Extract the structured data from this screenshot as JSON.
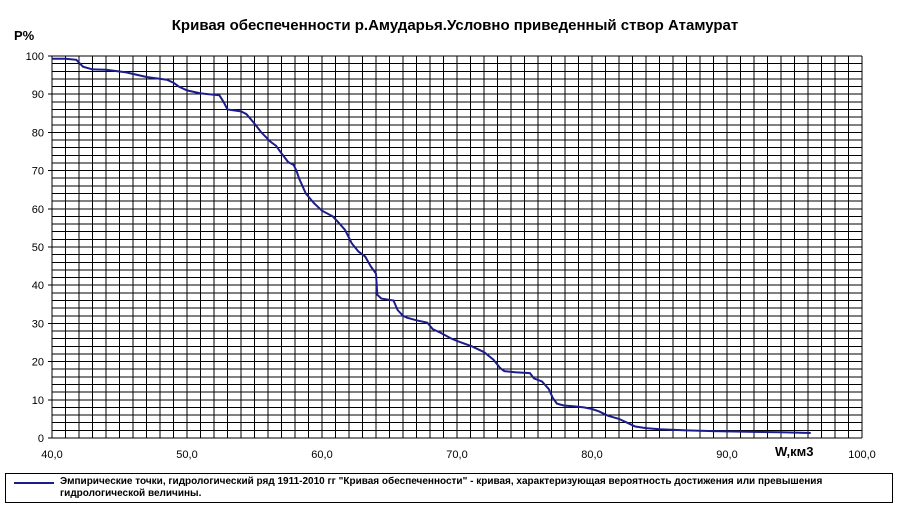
{
  "chart_data": {
    "type": "line",
    "title": "Кривая обеспеченности р.Амударья.Условно приведенный створ Атамурат",
    "ylabel": "P%",
    "xlabel": "W,км3",
    "xlim": [
      40,
      100
    ],
    "ylim": [
      0,
      100
    ],
    "x_ticks": [
      "40,0",
      "50,0",
      "60,0",
      "70,0",
      "80,0",
      "90,0",
      "100,0"
    ],
    "y_ticks": [
      "0",
      "10",
      "20",
      "30",
      "40",
      "50",
      "60",
      "70",
      "80",
      "90",
      "100"
    ],
    "grid": true,
    "line_color": "#1c1c8c",
    "legend_position": "bottom",
    "series": [
      {
        "name": "Эмпирические точки, гидрологический ряд 1911-2010 гг  \"Кривая обеспеченности\" - кривая, характеризующая вероятность достижения или превышения гидрологической величины.",
        "x": [
          40.0,
          41.0,
          41.8,
          42.3,
          43.0,
          44.0,
          45.5,
          47.0,
          48.5,
          49.0,
          49.4,
          50.0,
          51.0,
          52.4,
          52.7,
          53.0,
          54.0,
          54.4,
          55.0,
          55.5,
          56.2,
          56.6,
          57.0,
          57.5,
          57.9,
          58.1,
          58.3,
          58.8,
          59.4,
          60.0,
          60.8,
          61.2,
          61.7,
          62.2,
          62.7,
          63.2,
          63.6,
          64.0,
          64.1,
          64.4,
          65.3,
          65.6,
          66.0,
          66.3,
          67.0,
          67.8,
          68.2,
          68.8,
          69.6,
          70.3,
          71.1,
          72.0,
          72.7,
          73.2,
          73.5,
          74.3,
          75.4,
          75.7,
          76.3,
          76.8,
          77.1,
          77.4,
          77.9,
          78.6,
          79.4,
          80.0,
          80.5,
          81.2,
          82.0,
          82.6,
          83.2,
          84.0,
          85.0,
          87.0,
          89.0,
          92.0,
          94.0,
          95.5,
          96.2
        ],
        "y": [
          99.3,
          99.3,
          99.0,
          97.2,
          96.5,
          96.4,
          95.7,
          94.5,
          93.8,
          93.0,
          92.0,
          91.0,
          90.2,
          89.7,
          88.0,
          86.0,
          85.5,
          84.8,
          82.3,
          80.0,
          77.5,
          76.5,
          74.5,
          72.2,
          71.5,
          70.0,
          68.0,
          64.0,
          61.5,
          59.5,
          58.0,
          56.5,
          54.5,
          51.0,
          48.8,
          47.5,
          45.0,
          43.0,
          37.5,
          36.5,
          36.0,
          33.5,
          32.0,
          31.5,
          30.8,
          30.2,
          28.5,
          27.5,
          26.0,
          25.0,
          24.0,
          22.5,
          20.5,
          18.3,
          17.5,
          17.2,
          17.0,
          15.6,
          14.8,
          12.8,
          10.5,
          9.0,
          8.5,
          8.3,
          8.0,
          7.6,
          7.0,
          5.8,
          5.0,
          4.0,
          3.0,
          2.6,
          2.3,
          2.0,
          1.8,
          1.6,
          1.5,
          1.4,
          1.3
        ]
      }
    ]
  }
}
